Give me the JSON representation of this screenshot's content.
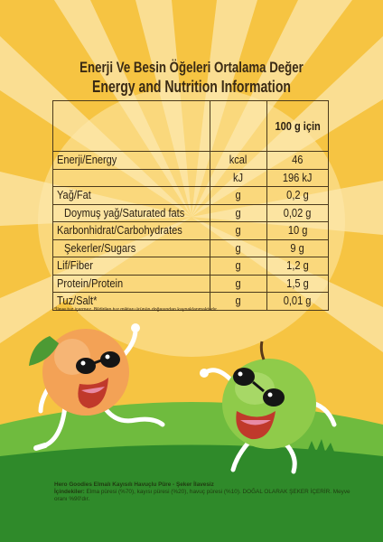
{
  "title": {
    "line1": "Enerji Ve Besin Öğeleri Ortalama Değer",
    "line2": "Energy and Nutrition Information"
  },
  "table": {
    "column_header": "100 g için",
    "rows": [
      {
        "name": "Enerji/Energy",
        "unit": "kcal",
        "value": "46"
      },
      {
        "name": "",
        "unit": "kJ",
        "value": "196 kJ"
      },
      {
        "name": "Yağ/Fat",
        "unit": "g",
        "value": "0,2  g"
      },
      {
        "name": "Doymuş yağ/Saturated fats",
        "unit": "g",
        "value": "0,02 g"
      },
      {
        "name": "Karbonhidrat/Carbohydrates",
        "unit": "g",
        "value": "10  g"
      },
      {
        "name": "Şekerler/Sugars",
        "unit": "g",
        "value": "9  g"
      },
      {
        "name": "Lif/Fiber",
        "unit": "g",
        "value": "1,2  g"
      },
      {
        "name": "Protein/Protein",
        "unit": "g",
        "value": "1,5  g"
      },
      {
        "name": "Tuz/Salt*",
        "unit": "g",
        "value": "0,01  g"
      }
    ]
  },
  "footnote": "*İlave tuz içermez. Bildirilen tuz miktarı ürünün doğasından kaynaklanmaktadır.",
  "product": {
    "name": "Hero Goodies Elmalı Kayısılı Havuçlu Püre - Şeker İlavesiz",
    "ingredients_label": "İçindekiler:",
    "ingredients_text": " Elma püresi (%70), kayısı püresi (%20), havuç püresi (%10). DOĞAL OLARAK ŞEKER İÇERİR. Meyve oranı %90'dır."
  },
  "colors": {
    "background_yellow": "#f7c94a",
    "ray_light": "#fbe7a2",
    "grass_green": "#5aa83a",
    "dark_green": "#2f7d22",
    "apricot": "#f3a256",
    "apple": "#8fcb4a",
    "text_brown": "#3a2a14"
  },
  "icons": [
    "apricot-character-icon",
    "apple-character-icon",
    "grass-tuft-icon"
  ]
}
